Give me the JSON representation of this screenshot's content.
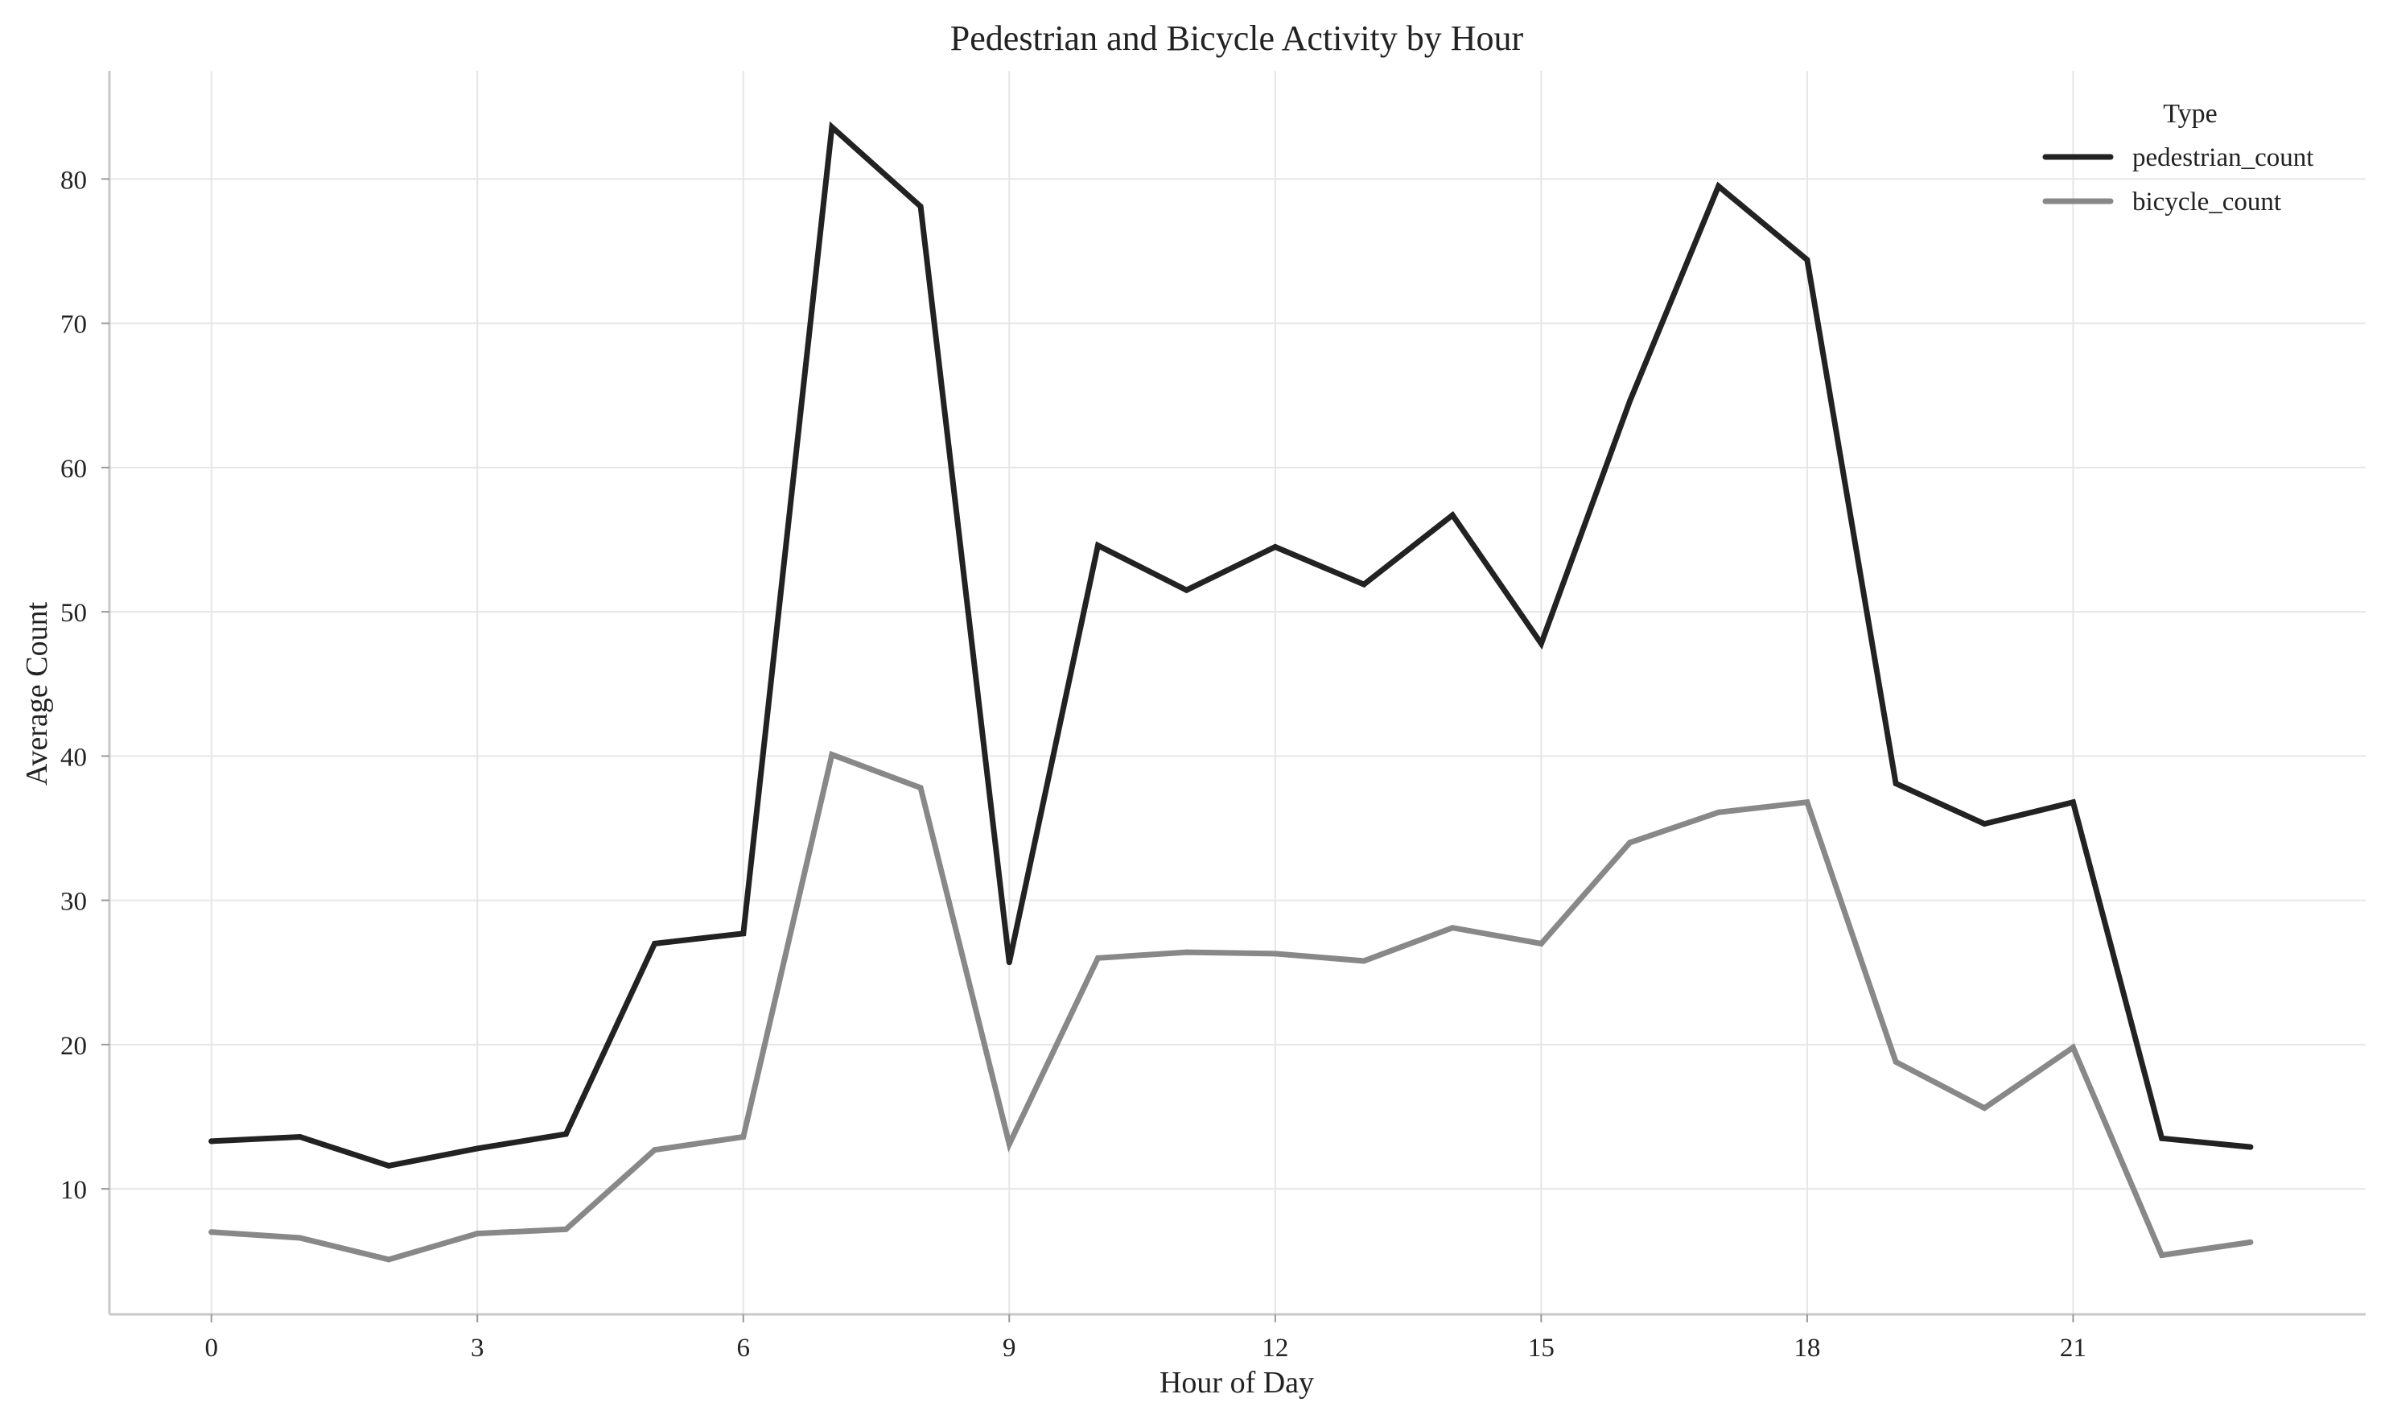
{
  "chart_data": {
    "type": "line",
    "title": "Pedestrian and Bicycle Activity by Hour",
    "xlabel": "Hour of Day",
    "ylabel": "Average Count",
    "x": [
      0,
      1,
      2,
      3,
      4,
      5,
      6,
      7,
      8,
      9,
      10,
      11,
      12,
      13,
      14,
      15,
      16,
      17,
      18,
      19,
      20,
      21,
      22,
      23
    ],
    "xticks": [
      0,
      3,
      6,
      9,
      12,
      15,
      18,
      21
    ],
    "yticks": [
      10,
      20,
      30,
      40,
      50,
      60,
      70,
      80
    ],
    "xlim": [
      -1.15,
      24.3
    ],
    "ylim": [
      1.3,
      87.5
    ],
    "grid": true,
    "legend": {
      "title": "Type",
      "placement": "top-right"
    },
    "series": [
      {
        "name": "pedestrian_count",
        "color": "#222222",
        "values": [
          13.3,
          13.6,
          11.6,
          12.8,
          13.8,
          27.0,
          27.7,
          83.6,
          78.1,
          25.7,
          54.6,
          51.5,
          54.5,
          51.9,
          56.7,
          47.8,
          64.6,
          79.5,
          74.4,
          38.1,
          35.3,
          36.8,
          13.5,
          12.9
        ]
      },
      {
        "name": "bicycle_count",
        "color": "#888888",
        "values": [
          7.0,
          6.6,
          5.1,
          6.9,
          7.2,
          12.7,
          13.6,
          40.1,
          37.8,
          13.1,
          26.0,
          26.4,
          26.3,
          25.8,
          28.1,
          27.0,
          34.0,
          36.1,
          36.8,
          18.8,
          15.6,
          19.8,
          5.4,
          6.3
        ]
      }
    ]
  }
}
